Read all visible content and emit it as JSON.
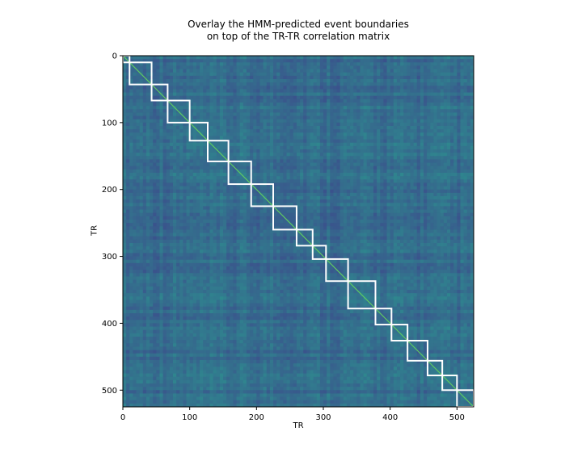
{
  "chart_data": {
    "type": "heatmap",
    "title": "Overlay the HMM-predicted event boundaries",
    "subtitle": "on top of the TR-TR correlation matrix",
    "xlabel": "TR",
    "ylabel": "TR",
    "n": 525,
    "xlim": [
      0,
      525
    ],
    "ylim": [
      525,
      0
    ],
    "x_ticks": [
      "0",
      "100",
      "200",
      "300",
      "400",
      "500"
    ],
    "y_ticks": [
      "0",
      "100",
      "200",
      "300",
      "400",
      "500"
    ],
    "colormap": "viridis",
    "matrix_color_low": "#3b4f8c",
    "matrix_color_mid": "#33638d",
    "matrix_color_high": "#2a9d8f",
    "diagonal_color": "#5ec962",
    "boundary_color": "#ffffff",
    "event_boundaries": [
      0,
      10,
      43,
      67,
      100,
      127,
      158,
      192,
      225,
      260,
      284,
      304,
      337,
      378,
      402,
      426,
      456,
      478,
      500,
      525
    ]
  }
}
